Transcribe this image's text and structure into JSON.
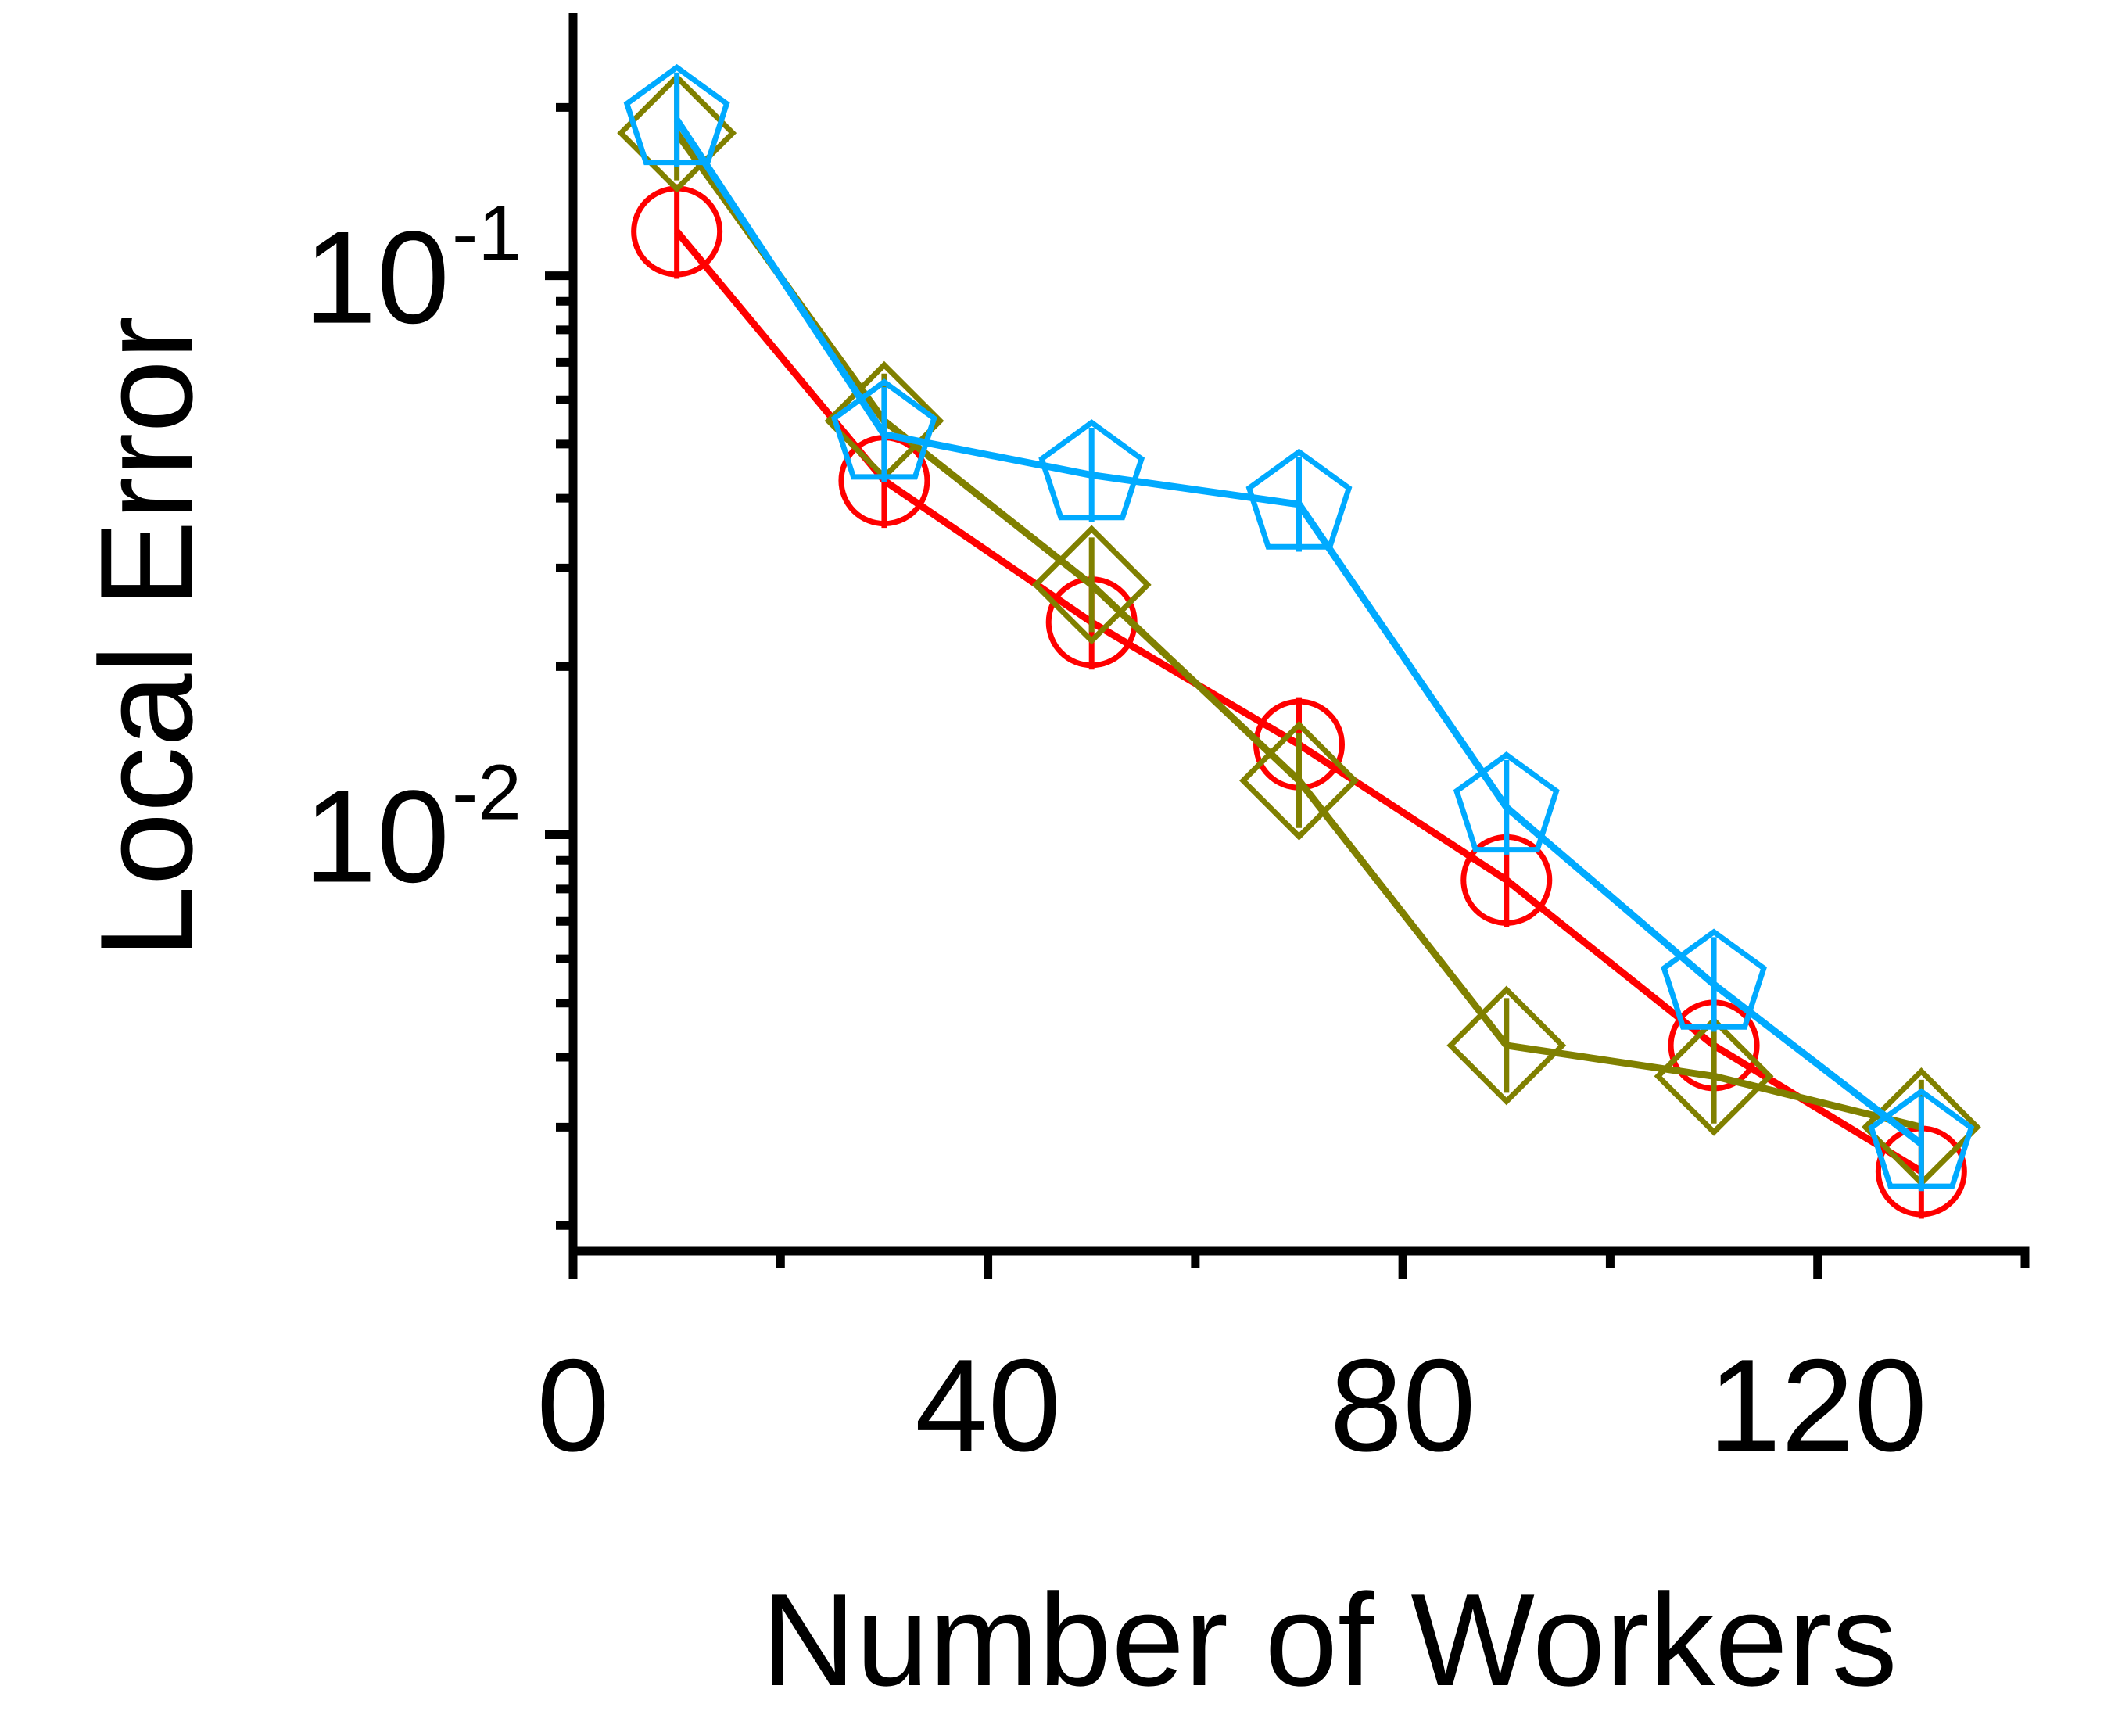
{
  "chart_data": {
    "type": "line",
    "title": "",
    "xlabel": "Number of Workers",
    "ylabel": "Local Error",
    "x": [
      10,
      30,
      50,
      70,
      90,
      110,
      130
    ],
    "xlim": [
      0,
      140
    ],
    "ylim": [
      0.0018,
      0.29
    ],
    "yscale": "log",
    "x_ticks": [
      0,
      40,
      80,
      120
    ],
    "x_tick_labels": [
      "0",
      "40",
      "80",
      "120"
    ],
    "x_minor_ticks": [
      20,
      60,
      100,
      140
    ],
    "y_major_ticks": [
      0.1,
      0.01
    ],
    "y_tick_labels": [
      {
        "base": "10",
        "exp": "-1"
      },
      {
        "base": "10",
        "exp": "-2"
      }
    ],
    "y_minor_ticks": [
      0.2,
      0.09,
      0.08,
      0.07,
      0.06,
      0.05,
      0.04,
      0.03,
      0.02,
      0.009,
      0.008,
      0.007,
      0.006,
      0.005,
      0.004,
      0.003,
      0.002
    ],
    "grid": false,
    "series": [
      {
        "marker": "circle",
        "color": "#ff0000",
        "values": [
          0.12,
          0.043,
          0.024,
          0.0145,
          0.0083,
          0.0042,
          0.0025
        ]
      },
      {
        "marker": "diamond",
        "color": "#808000",
        "values": [
          0.18,
          0.055,
          0.028,
          0.0125,
          0.0042,
          0.0037,
          0.003
        ]
      },
      {
        "marker": "pentagon",
        "color": "#00aaff",
        "values": [
          0.19,
          0.052,
          0.044,
          0.039,
          0.0112,
          0.0054,
          0.0028
        ]
      }
    ]
  }
}
